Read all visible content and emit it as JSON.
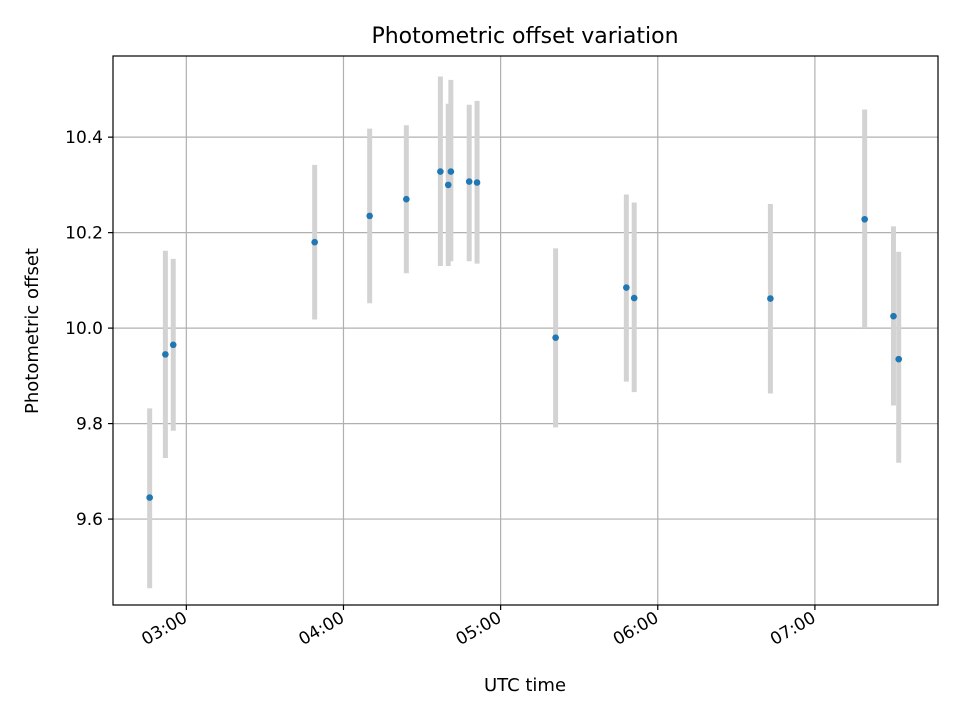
{
  "chart_data": {
    "type": "scatter",
    "title": "Photometric offset variation",
    "xlabel": "UTC time",
    "ylabel": "Photometric offset",
    "x_axis_kind": "time (HH:MM)",
    "xlim": [
      "02:32",
      "07:47"
    ],
    "ylim": [
      9.42,
      10.57
    ],
    "xticks": [
      "03:00",
      "04:00",
      "05:00",
      "06:00",
      "07:00"
    ],
    "yticks": [
      9.6,
      9.8,
      10.0,
      10.2,
      10.4
    ],
    "ytick_labels": [
      "9.6",
      "9.8",
      "10.0",
      "10.2",
      "10.4"
    ],
    "grid": true,
    "marker_color": "#1f77b4",
    "errorbar_color": "#d3d3d3",
    "points": [
      {
        "x": "02:46",
        "y": 9.645,
        "ylow": 9.455,
        "yhigh": 9.832
      },
      {
        "x": "02:52",
        "y": 9.945,
        "ylow": 9.728,
        "yhigh": 10.162
      },
      {
        "x": "02:55",
        "y": 9.965,
        "ylow": 9.785,
        "yhigh": 10.145
      },
      {
        "x": "03:49",
        "y": 10.18,
        "ylow": 10.018,
        "yhigh": 10.342
      },
      {
        "x": "04:10",
        "y": 10.235,
        "ylow": 10.052,
        "yhigh": 10.418
      },
      {
        "x": "04:24",
        "y": 10.27,
        "ylow": 10.115,
        "yhigh": 10.425
      },
      {
        "x": "04:37",
        "y": 10.328,
        "ylow": 10.13,
        "yhigh": 10.527
      },
      {
        "x": "04:40",
        "y": 10.3,
        "ylow": 10.13,
        "yhigh": 10.47
      },
      {
        "x": "04:41",
        "y": 10.328,
        "ylow": 10.14,
        "yhigh": 10.52
      },
      {
        "x": "04:48",
        "y": 10.307,
        "ylow": 10.14,
        "yhigh": 10.468
      },
      {
        "x": "04:51",
        "y": 10.305,
        "ylow": 10.135,
        "yhigh": 10.476
      },
      {
        "x": "05:21",
        "y": 9.98,
        "ylow": 9.792,
        "yhigh": 10.167
      },
      {
        "x": "05:48",
        "y": 10.085,
        "ylow": 9.888,
        "yhigh": 10.28
      },
      {
        "x": "05:51",
        "y": 10.063,
        "ylow": 9.866,
        "yhigh": 10.263
      },
      {
        "x": "06:43",
        "y": 10.062,
        "ylow": 9.863,
        "yhigh": 10.26
      },
      {
        "x": "07:19",
        "y": 10.228,
        "ylow": 10.0,
        "yhigh": 10.458
      },
      {
        "x": "07:30",
        "y": 10.025,
        "ylow": 9.838,
        "yhigh": 10.213
      },
      {
        "x": "07:32",
        "y": 9.935,
        "ylow": 9.718,
        "yhigh": 10.16
      }
    ]
  }
}
